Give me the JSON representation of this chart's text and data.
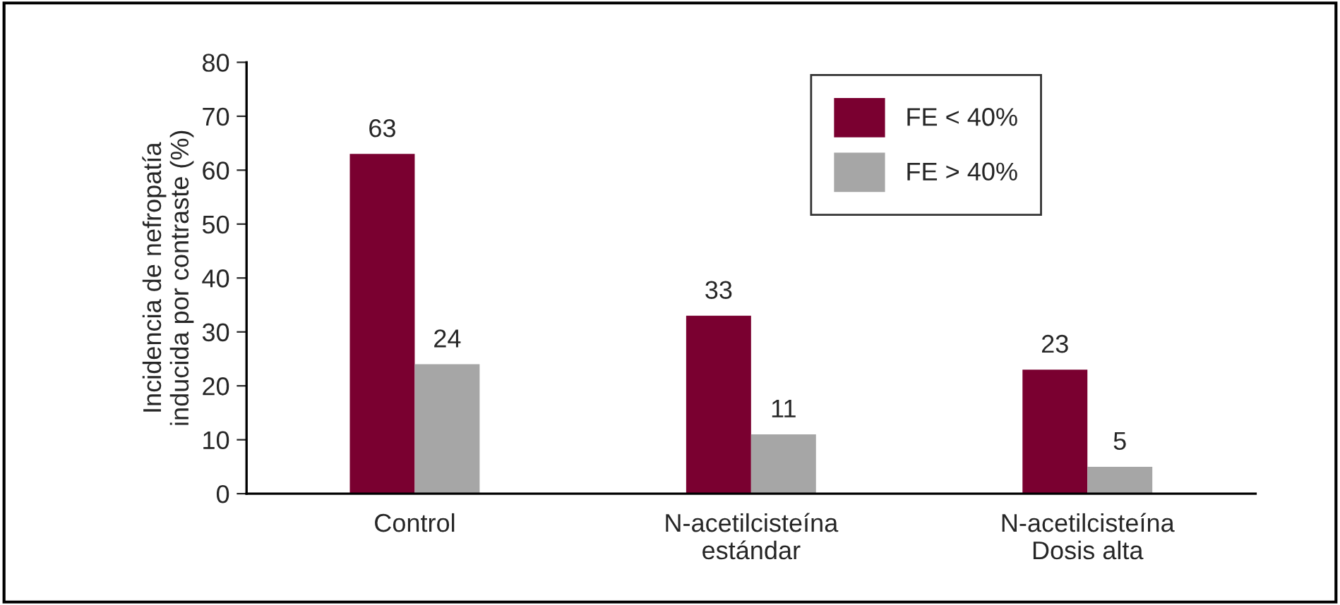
{
  "chart_data": {
    "type": "bar",
    "ylabel": "Incidencia de nefropatía\ninducida por contraste (%)",
    "categories": [
      "Control",
      "N-acetilcisteína\nestándar",
      "N-acetilcisteína\nDosis alta"
    ],
    "series": [
      {
        "name": "FE < 40%",
        "color": "#7a0030",
        "values": [
          63,
          33,
          23
        ]
      },
      {
        "name": "FE > 40%",
        "color": "#a6a6a6",
        "values": [
          24,
          11,
          5
        ]
      }
    ],
    "ylim": [
      0,
      80
    ],
    "yticks": [
      0,
      10,
      20,
      30,
      40,
      50,
      60,
      70,
      80
    ],
    "data_labels": true,
    "legend": "top right",
    "grid": false
  }
}
